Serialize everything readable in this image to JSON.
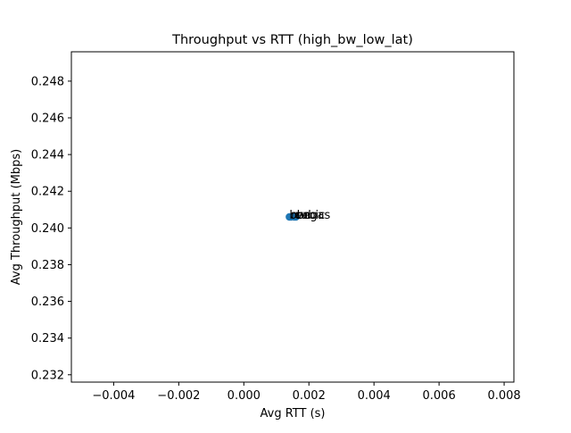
{
  "chart_data": {
    "type": "scatter",
    "title": "Throughput vs RTT (high_bw_low_lat)",
    "xlabel": "Avg RTT (s)",
    "ylabel": "Avg Throughput (Mbps)",
    "xlim": [
      -0.0053,
      0.0083
    ],
    "ylim": [
      0.2316,
      0.2496
    ],
    "x_ticks": [
      -0.004,
      -0.002,
      0.0,
      0.002,
      0.004,
      0.006,
      0.008
    ],
    "x_tick_labels": [
      "−0.004",
      "−0.002",
      "0.000",
      "0.002",
      "0.004",
      "0.006",
      "0.008"
    ],
    "y_ticks": [
      0.232,
      0.234,
      0.236,
      0.238,
      0.24,
      0.242,
      0.244,
      0.246,
      0.248
    ],
    "y_tick_labels": [
      "0.232",
      "0.234",
      "0.236",
      "0.238",
      "0.240",
      "0.242",
      "0.244",
      "0.246",
      "0.248"
    ],
    "grid": false,
    "marker_color": "#1f77b4",
    "points": [
      {
        "label": "bbr",
        "x": 0.0014,
        "y": 0.2406
      },
      {
        "label": "cubic",
        "x": 0.00155,
        "y": 0.2406
      },
      {
        "label": "reno",
        "x": 0.00145,
        "y": 0.2406
      },
      {
        "label": "vegas",
        "x": 0.0016,
        "y": 0.2406
      }
    ]
  }
}
